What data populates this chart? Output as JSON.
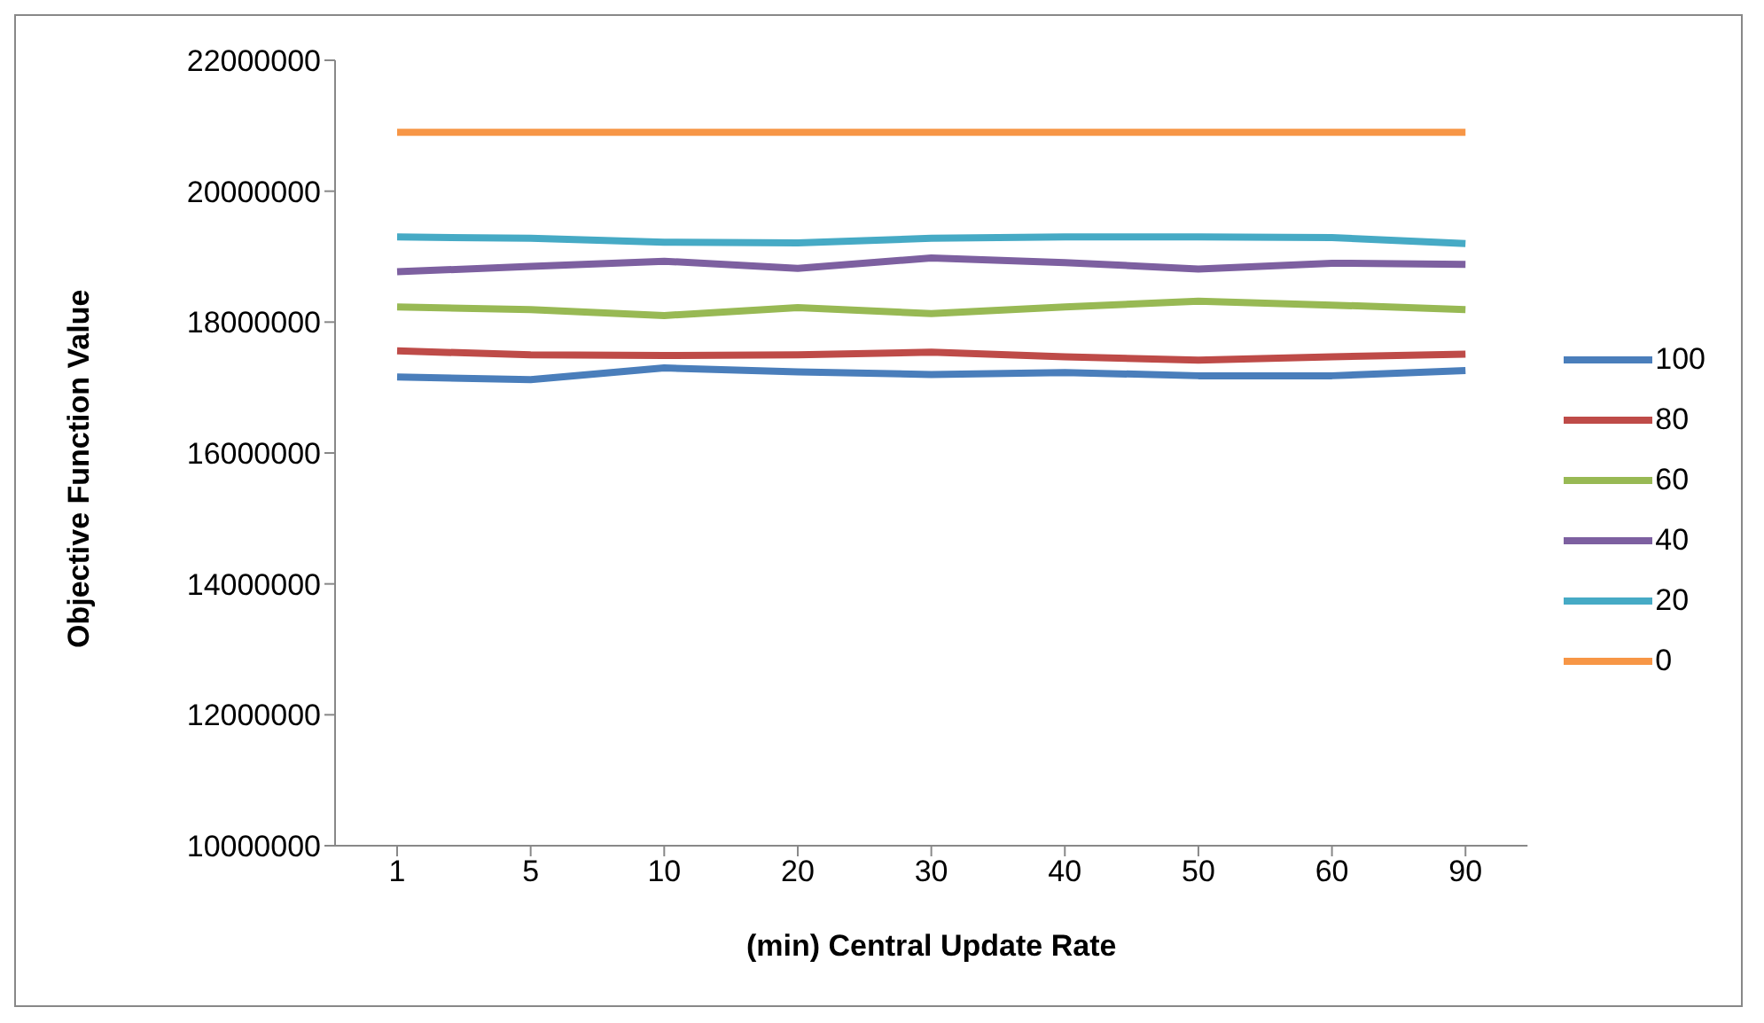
{
  "chart_data": {
    "type": "line",
    "xlabel": "(min) Central Update Rate",
    "ylabel": "Objective Function Value",
    "categories": [
      "1",
      "5",
      "10",
      "20",
      "30",
      "40",
      "50",
      "60",
      "90"
    ],
    "series": [
      {
        "name": "100",
        "color": "#4a7ebb",
        "values": [
          17160000,
          17120000,
          17300000,
          17240000,
          17200000,
          17230000,
          17180000,
          17180000,
          17260000
        ]
      },
      {
        "name": "80",
        "color": "#be4b48",
        "values": [
          17560000,
          17500000,
          17490000,
          17500000,
          17540000,
          17470000,
          17420000,
          17470000,
          17510000
        ]
      },
      {
        "name": "60",
        "color": "#98b954",
        "values": [
          18230000,
          18190000,
          18100000,
          18220000,
          18130000,
          18230000,
          18320000,
          18260000,
          18190000
        ]
      },
      {
        "name": "40",
        "color": "#7d60a0",
        "values": [
          18770000,
          18850000,
          18930000,
          18820000,
          18980000,
          18910000,
          18810000,
          18900000,
          18880000
        ]
      },
      {
        "name": "20",
        "color": "#46aac5",
        "values": [
          19300000,
          19280000,
          19220000,
          19210000,
          19280000,
          19300000,
          19300000,
          19290000,
          19200000
        ]
      },
      {
        "name": "0",
        "color": "#f79646",
        "values": [
          20900000,
          20900000,
          20900000,
          20900000,
          20900000,
          20900000,
          20900000,
          20900000,
          20900000
        ]
      }
    ],
    "ylim": [
      10000000,
      22000000
    ],
    "yticks": [
      10000000,
      12000000,
      14000000,
      16000000,
      18000000,
      20000000,
      22000000
    ],
    "grid": false,
    "legend": "right",
    "marker": "none",
    "line_style": "solid"
  }
}
